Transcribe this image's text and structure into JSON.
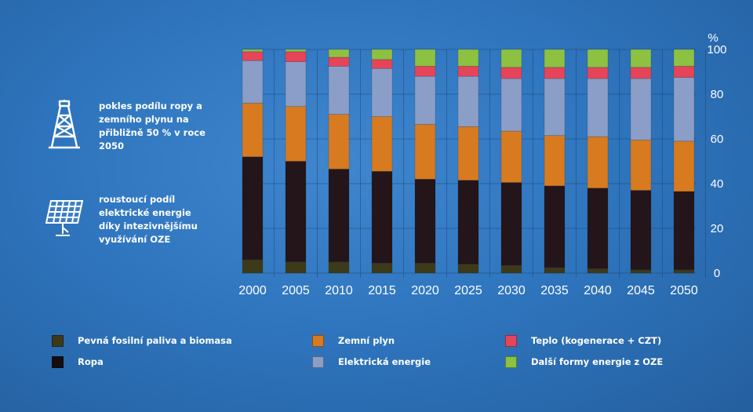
{
  "chart_data": {
    "type": "bar",
    "stacked": true,
    "categories": [
      "2000",
      "2005",
      "2010",
      "2015",
      "2020",
      "2025",
      "2030",
      "2035",
      "2040",
      "2045",
      "2050"
    ],
    "unit": "%",
    "ylim": [
      0,
      100
    ],
    "yticks": [
      0,
      20,
      40,
      60,
      80,
      100
    ],
    "grid": true,
    "series": [
      {
        "name": "Pevná fosilní paliva a biomasa",
        "color": "#3d3a1a",
        "values": [
          6,
          5,
          5,
          4.5,
          4.5,
          4,
          3.5,
          2.5,
          2,
          1.5,
          1.5
        ]
      },
      {
        "name": "Ropa",
        "color": "#231519",
        "values": [
          46,
          45,
          41.5,
          41,
          37.5,
          37.5,
          37,
          36.5,
          36,
          35.5,
          35
        ]
      },
      {
        "name": "Zemní plyn",
        "color": "#d87a20",
        "values": [
          24,
          24.5,
          24.5,
          24.5,
          24.5,
          24,
          23,
          22.5,
          23,
          22.5,
          22.5
        ]
      },
      {
        "name": "Elektrická energie",
        "color": "#8b9ec8",
        "values": [
          19,
          20,
          21.5,
          21.5,
          21.5,
          22.5,
          23.5,
          25.5,
          26,
          27.5,
          28.5
        ]
      },
      {
        "name": "Teplo (kogenerace + CZT)",
        "color": "#e64458",
        "values": [
          4,
          4.5,
          4,
          4,
          4.5,
          4.5,
          5,
          5,
          5,
          5,
          5
        ]
      },
      {
        "name": "Další formy energie z OZE",
        "color": "#8cc142",
        "values": [
          1,
          1,
          3.5,
          4.5,
          7.5,
          7.5,
          8,
          8,
          8,
          8,
          7.5
        ]
      }
    ]
  },
  "notes": [
    {
      "icon": "oil-derrick-icon",
      "text": "pokles podílu ropy a zemního plynu na přibližně 50 % v roce 2050"
    },
    {
      "icon": "solar-panel-icon",
      "text": "roustoucí podíl elektrické energie díky intezivnějšímu využívání OZE"
    }
  ],
  "legend": [
    {
      "label": "Pevná fosilní paliva a biomasa",
      "color": "#3d3a1a"
    },
    {
      "label": "Zemní plyn",
      "color": "#d87a20"
    },
    {
      "label": "Teplo (kogenerace + CZT)",
      "color": "#e64458"
    },
    {
      "label": "Ropa",
      "color": "#140d10"
    },
    {
      "label": "Elektrická energie",
      "color": "#8b9ec8"
    },
    {
      "label": "Další formy energie z OZE",
      "color": "#8cc142"
    }
  ]
}
